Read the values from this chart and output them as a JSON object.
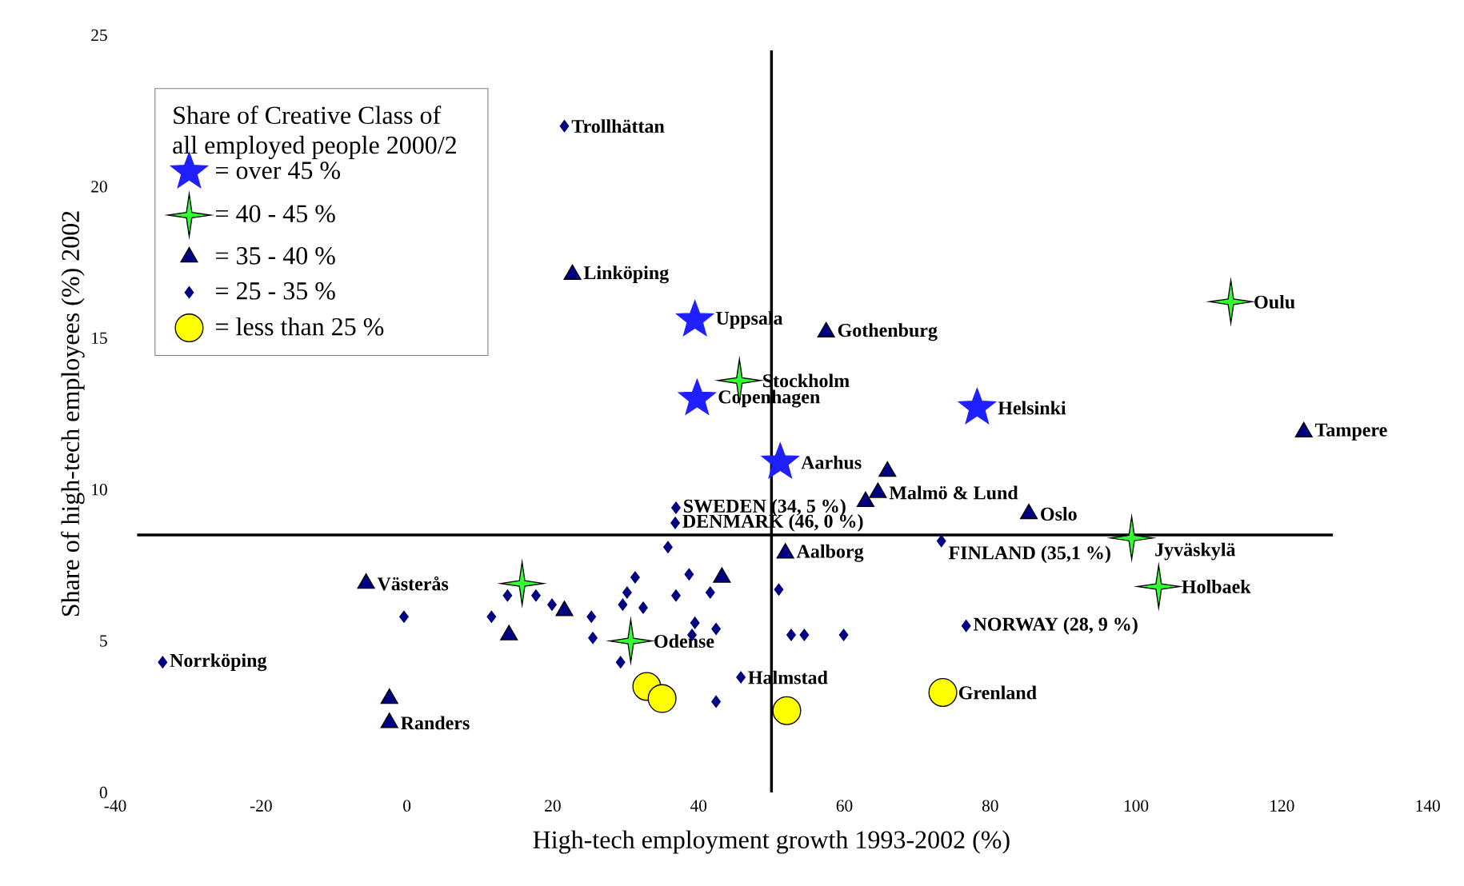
{
  "chart_data": {
    "type": "scatter",
    "xlabel": "High-tech employment growth 1993-2002 (%)",
    "ylabel": "Share of high-tech employees (%) 2002",
    "legend_title": "Share of Creative Class of all employed people 2000/2",
    "xlim": [
      -40,
      140
    ],
    "xticks": [
      -40,
      -20,
      0,
      20,
      40,
      60,
      80,
      100,
      120,
      140
    ],
    "ylim": [
      0,
      25
    ],
    "yticks": [
      0,
      5,
      10,
      15,
      20,
      25
    ],
    "grid": false,
    "legend": "top left",
    "ref_lines": [
      {
        "axis": "x",
        "value": 50,
        "label": null
      },
      {
        "axis": "y",
        "value": 8.5,
        "label": null
      }
    ],
    "series": [
      {
        "name": "= over 45 %",
        "color": "#1f1fff",
        "marker": "star",
        "x": [
          39.5,
          39.8,
          78.2,
          51.2
        ],
        "values": [
          15.6,
          13.0,
          12.7,
          10.9
        ]
      },
      {
        "name": "= 40 - 45 %",
        "color": "#33ff33",
        "marker": "cross",
        "x": [
          113.0,
          45.6,
          99.4,
          103.1,
          15.8,
          30.7
        ],
        "values": [
          16.2,
          13.6,
          8.4,
          6.8,
          6.9,
          5.0
        ]
      },
      {
        "name": "= 35 - 40 %",
        "color": "#000080",
        "marker": "triangle",
        "x": [
          22.7,
          57.5,
          123.0,
          65.9,
          64.6,
          62.9,
          85.3,
          51.9,
          43.2,
          -5.6,
          14.0,
          21.6,
          -2.4,
          -2.4
        ],
        "values": [
          17.1,
          15.2,
          11.9,
          10.6,
          9.9,
          9.6,
          9.2,
          7.9,
          7.1,
          6.9,
          5.2,
          6.0,
          3.1,
          2.3
        ]
      },
      {
        "name": "= 25 - 35 %",
        "color": "#000080",
        "marker": "diamond",
        "x": [
          -33.5,
          21.6,
          -0.4,
          11.6,
          13.8,
          17.7,
          19.9,
          25.3,
          25.5,
          29.3,
          29.6,
          30.2,
          31.3,
          32.4,
          35.8,
          36.9,
          36.8,
          36.9,
          39.5,
          39.1,
          41.6,
          42.4,
          42.4,
          45.8,
          51.0,
          52.7,
          54.5,
          59.9,
          73.3,
          38.7,
          76.7
        ],
        "values": [
          4.3,
          22.0,
          5.8,
          5.8,
          6.5,
          6.5,
          6.2,
          5.8,
          5.1,
          4.3,
          6.2,
          6.6,
          7.1,
          6.1,
          8.1,
          9.4,
          8.9,
          6.5,
          5.6,
          5.2,
          6.6,
          5.4,
          3.0,
          3.8,
          6.7,
          5.2,
          5.2,
          5.2,
          8.3,
          7.2,
          5.5
        ]
      },
      {
        "name": "= less than 25 %",
        "color": "#ffff00",
        "marker": "circle",
        "x": [
          32.9,
          35.0,
          52.1,
          73.5
        ],
        "values": [
          3.5,
          3.1,
          2.7,
          3.3
        ]
      }
    ],
    "annotations": [
      {
        "text": "Trollhättan",
        "x": 21.6,
        "y": 22.0
      },
      {
        "text": "Linköping",
        "x": 22.7,
        "y": 17.1
      },
      {
        "text": "Uppsala",
        "x": 39.5,
        "y": 15.6
      },
      {
        "text": "Gothenburg",
        "x": 57.5,
        "y": 15.2
      },
      {
        "text": "Oulu",
        "x": 113.0,
        "y": 16.2
      },
      {
        "text": "Stockholm",
        "x": 45.6,
        "y": 13.6
      },
      {
        "text": "Copenhagen",
        "x": 39.8,
        "y": 13.0
      },
      {
        "text": "Helsinki",
        "x": 78.2,
        "y": 12.7
      },
      {
        "text": "Tampere",
        "x": 123.0,
        "y": 11.9
      },
      {
        "text": "Aarhus",
        "x": 51.2,
        "y": 10.9
      },
      {
        "text": "SWEDEN (34, 5 %)",
        "x": 36.9,
        "y": 9.4
      },
      {
        "text": "Malmö & Lund",
        "x": 64.6,
        "y": 9.9
      },
      {
        "text": "Oslo",
        "x": 85.3,
        "y": 9.2
      },
      {
        "text": "DENMARK (46, 0 %)",
        "x": 36.8,
        "y": 8.9
      },
      {
        "text": "FINLAND (35,1 %)",
        "x": 73.3,
        "y": 8.3
      },
      {
        "text": "Jyväskylä",
        "x": 99.4,
        "y": 8.4
      },
      {
        "text": "Aalborg",
        "x": 51.9,
        "y": 7.9
      },
      {
        "text": "Västerås",
        "x": -5.6,
        "y": 6.9
      },
      {
        "text": "Holbaek",
        "x": 103.1,
        "y": 6.8
      },
      {
        "text": "Norrköping",
        "x": -33.5,
        "y": 4.3
      },
      {
        "text": "Odense",
        "x": 30.7,
        "y": 5.0
      },
      {
        "text": "NORWAY (28, 9 %)",
        "x": 76.7,
        "y": 5.5
      },
      {
        "text": "Halmstad",
        "x": 45.8,
        "y": 3.8
      },
      {
        "text": "Grenland",
        "x": 73.5,
        "y": 3.3
      },
      {
        "text": "Randers",
        "x": -2.4,
        "y": 2.3
      }
    ]
  }
}
